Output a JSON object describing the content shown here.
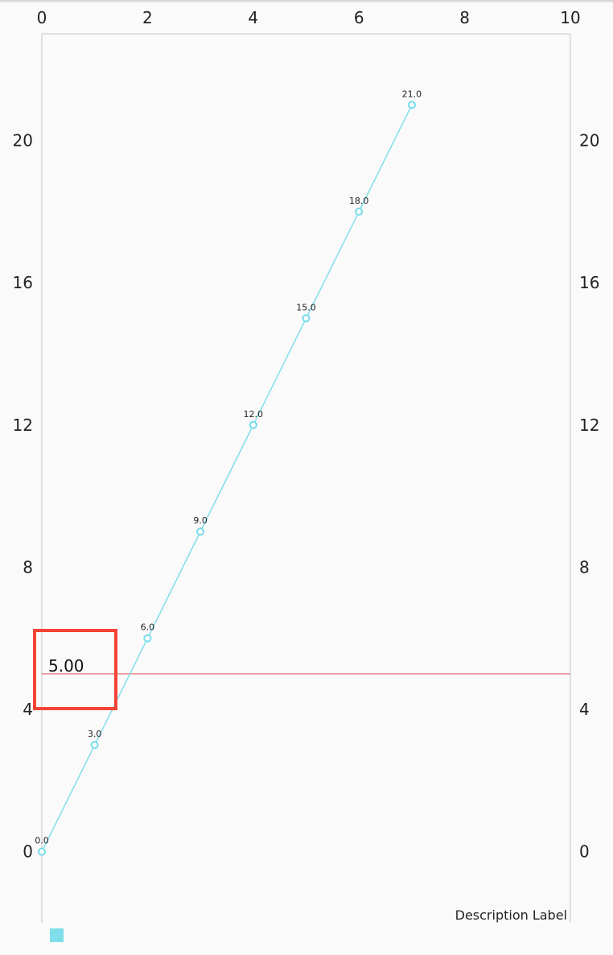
{
  "chart_data": {
    "type": "line",
    "x": [
      0,
      1,
      2,
      3,
      4,
      5,
      6,
      7
    ],
    "series": [
      {
        "values": [
          0,
          3,
          6,
          9,
          12,
          15,
          18,
          21
        ],
        "value_labels": [
          "0.0",
          "3.0",
          "6.0",
          "9.0",
          "12.0",
          "15.0",
          "18.0",
          "21.0"
        ],
        "color": "#80DEEA"
      }
    ],
    "xlim": [
      0,
      10
    ],
    "ylim": [
      -2,
      23
    ],
    "x_ticks": [
      "0",
      "2",
      "4",
      "6",
      "8",
      "10"
    ],
    "y_ticks": [
      "0",
      "4",
      "8",
      "12",
      "16",
      "20"
    ],
    "x_axis_position": "top",
    "y_axis": "both",
    "limit_line": {
      "value": 5,
      "label": "5.00",
      "color": "#E57373"
    },
    "highlight_box_color": "#F44336",
    "description": "Description Label",
    "legend": "bottom-left",
    "grid": false
  }
}
